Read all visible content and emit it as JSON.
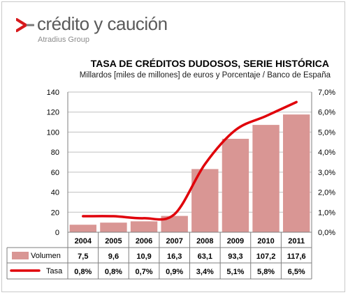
{
  "brand": {
    "name": "crédito y caución",
    "subtitle": "Atradius Group",
    "mark_color": "#d7191c",
    "mark_accent": "#7a7a7a"
  },
  "chart_data": {
    "type": "bar",
    "title": "TASA DE CRÉDITOS DUDOSOS, SERIE HISTÓRICA",
    "subtitle": "Millardos [miles de millones] de euros y Porcentaje / Banco de España",
    "categories": [
      "2004",
      "2005",
      "2006",
      "2007",
      "2008",
      "2009",
      "2010",
      "2011"
    ],
    "series": [
      {
        "name": "Volumen",
        "type": "bar",
        "axis": "left",
        "color": "#d99694",
        "values": [
          7.5,
          9.6,
          10.9,
          16.3,
          63.1,
          93.3,
          107.2,
          117.6
        ],
        "labels": [
          "7,5",
          "9,6",
          "10,9",
          "16,3",
          "63,1",
          "93,3",
          "107,2",
          "117,6"
        ]
      },
      {
        "name": "Tasa",
        "type": "line",
        "axis": "right",
        "color": "#e0000a",
        "values": [
          0.8,
          0.8,
          0.7,
          0.9,
          3.4,
          5.1,
          5.8,
          6.5
        ],
        "labels": [
          "0,8%",
          "0,8%",
          "0,7%",
          "0,9%",
          "3,4%",
          "5,1%",
          "5,8%",
          "6,5%"
        ]
      }
    ],
    "y_left": {
      "min": 0,
      "max": 140,
      "step": 20,
      "tick_labels": [
        "0",
        "20",
        "40",
        "60",
        "80",
        "100",
        "120",
        "140"
      ]
    },
    "y_right": {
      "min": 0,
      "max": 7,
      "step": 1,
      "tick_labels": [
        "0,0%",
        "1,0%",
        "2,0%",
        "3,0%",
        "4,0%",
        "5,0%",
        "6,0%",
        "7,0%"
      ]
    },
    "grid": true,
    "legend": "data-table"
  }
}
